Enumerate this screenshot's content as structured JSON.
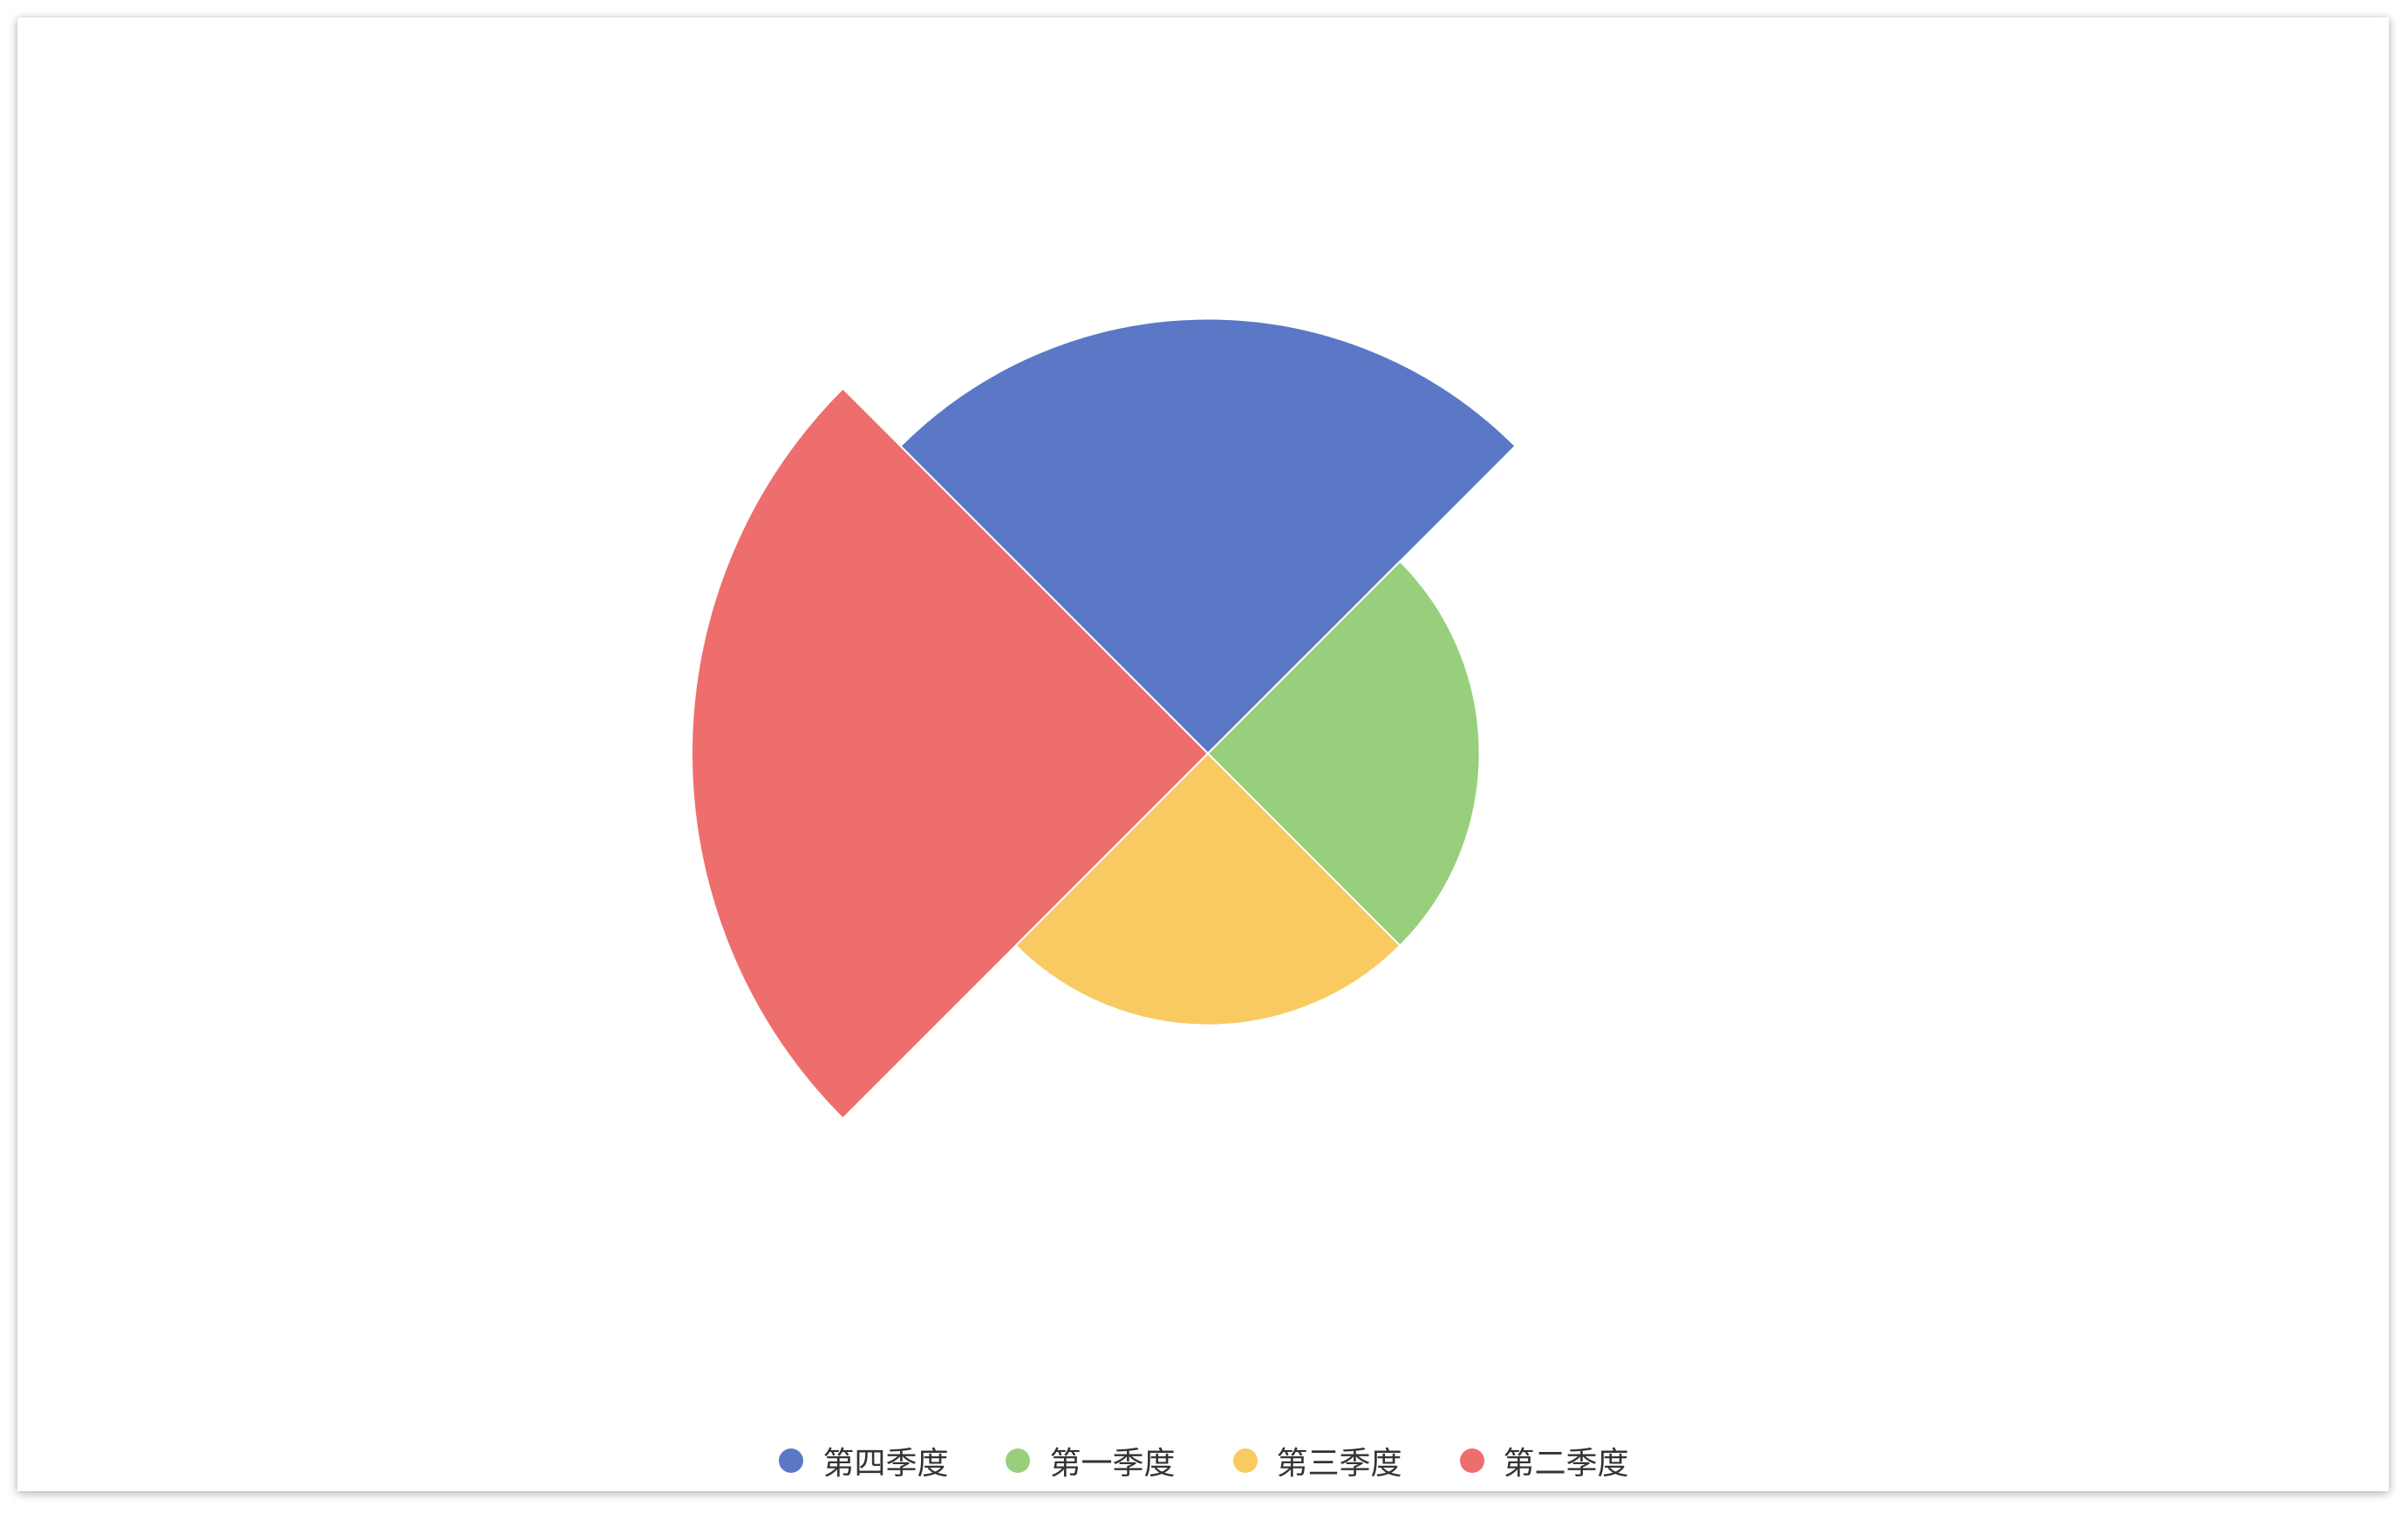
{
  "chart_data": {
    "type": "pie",
    "rose_type": "radius",
    "start_angle_deg": 45,
    "direction": "counterclockwise",
    "categories": [
      "第四季度",
      "第二季度",
      "第三季度",
      "第一季度"
    ],
    "values": [
      40,
      47.5,
      25,
      25
    ],
    "colors": [
      "#5b78c7",
      "#ee6e6d",
      "#f9ca61",
      "#98cf7c"
    ],
    "legend": {
      "position": "bottom-center",
      "items": [
        {
          "label": "第四季度",
          "color": "#5b78c7"
        },
        {
          "label": "第一季度",
          "color": "#98cf7c"
        },
        {
          "label": "第三季度",
          "color": "#f9ca61"
        },
        {
          "label": "第二季度",
          "color": "#ee6e6d"
        }
      ]
    }
  }
}
